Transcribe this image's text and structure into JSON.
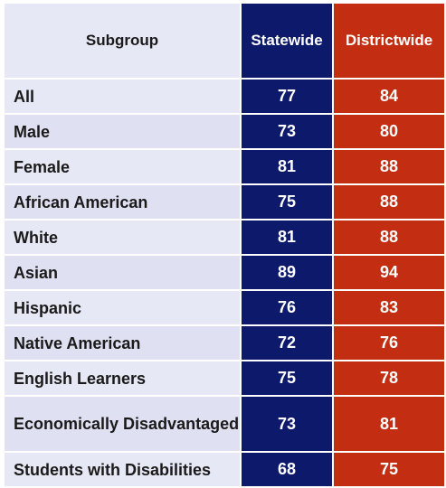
{
  "chart_data": {
    "type": "table",
    "columns": [
      "Subgroup",
      "Statewide",
      "Districtwide"
    ],
    "categories": [
      "All",
      "Male",
      "Female",
      "African American",
      "White",
      "Asian",
      "Hispanic",
      "Native American",
      "English Learners",
      "Economically Disadvantaged",
      "Students with Disabilities"
    ],
    "series": [
      {
        "name": "Statewide",
        "values": [
          77,
          73,
          81,
          75,
          81,
          89,
          76,
          72,
          75,
          73,
          68
        ],
        "color": "#0d1a6b"
      },
      {
        "name": "Districtwide",
        "values": [
          84,
          80,
          88,
          88,
          88,
          94,
          83,
          76,
          78,
          81,
          75
        ],
        "color": "#c32d12"
      }
    ]
  }
}
